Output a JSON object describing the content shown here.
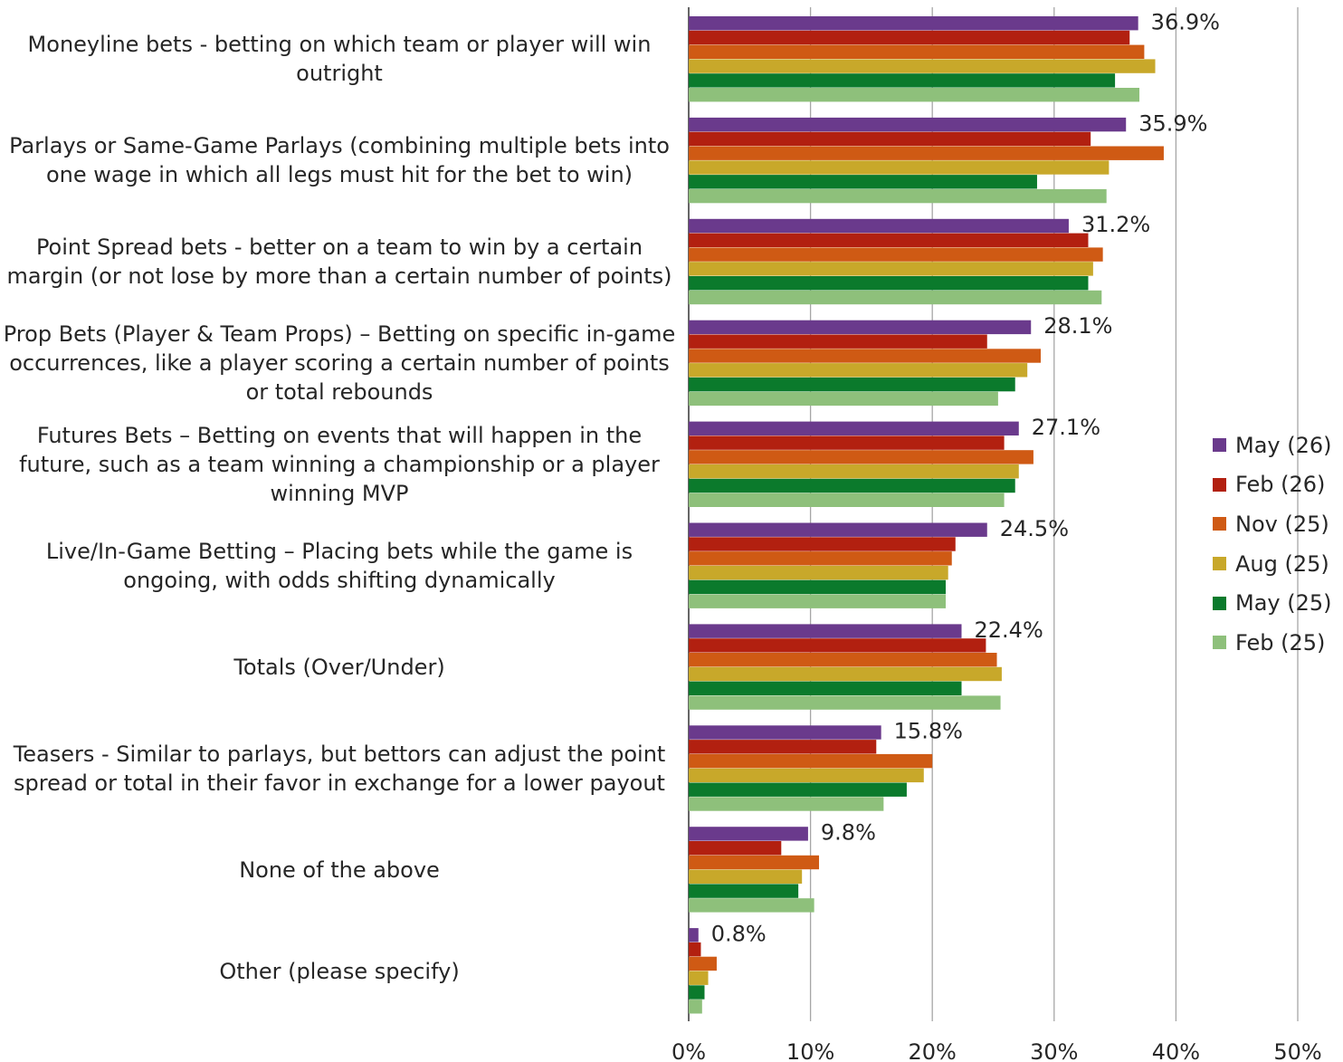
{
  "chart_data": {
    "type": "bar",
    "orientation": "horizontal",
    "categories": [
      "Moneyline bets - betting on which team or player will win outright",
      "Parlays or Same-Game Parlays (combining multiple bets into one wage in which all legs must hit for the bet to win)",
      "Point Spread bets - better on a team to win by a certain margin (or not lose by more than a certain number of points)",
      "Prop Bets (Player & Team Props) – Betting on specific in-game occurrences, like a player scoring a certain number of points or total rebounds",
      "Futures Bets – Betting on events that will happen in the future, such as a team winning a championship or a player winning MVP",
      "Live/In-Game Betting – Placing bets while the game is ongoing, with odds shifting dynamically",
      "Totals (Over/Under)",
      "Teasers - Similar to parlays, but bettors can adjust the point spread or total in their favor in exchange for a lower payout",
      "None of the above",
      "Other (please specify)"
    ],
    "series": [
      {
        "name": "May (26)",
        "color": "#6a3a8c",
        "values": [
          36.9,
          35.9,
          31.2,
          28.1,
          27.1,
          24.5,
          22.4,
          15.8,
          9.8,
          0.8
        ]
      },
      {
        "name": "Feb (26)",
        "color": "#b22010",
        "values": [
          36.2,
          33.0,
          32.8,
          24.5,
          25.9,
          21.9,
          24.4,
          15.4,
          7.6,
          1.0
        ]
      },
      {
        "name": "Nov (25)",
        "color": "#cf5a14",
        "values": [
          37.4,
          39.0,
          34.0,
          28.9,
          28.3,
          21.6,
          25.3,
          20.0,
          10.7,
          2.3
        ]
      },
      {
        "name": "Aug (25)",
        "color": "#c8a82a",
        "values": [
          38.3,
          34.5,
          33.2,
          27.8,
          27.1,
          21.3,
          25.7,
          19.3,
          9.3,
          1.6
        ]
      },
      {
        "name": "May (25)",
        "color": "#0b7a2c",
        "values": [
          35.0,
          28.6,
          32.8,
          26.8,
          26.8,
          21.1,
          22.4,
          17.9,
          9.0,
          1.3
        ]
      },
      {
        "name": "Feb (25)",
        "color": "#8ec07b",
        "values": [
          37.0,
          34.3,
          33.9,
          25.4,
          25.9,
          21.1,
          25.6,
          16.0,
          10.3,
          1.1
        ]
      }
    ],
    "data_labels": [
      "36.9%",
      "35.9%",
      "31.2%",
      "28.1%",
      "27.1%",
      "24.5%",
      "22.4%",
      "15.8%",
      "9.8%",
      "0.8%"
    ],
    "x_ticks": [
      "0%",
      "10%",
      "20%",
      "30%",
      "40%",
      "50%"
    ],
    "xlim": [
      0,
      50
    ],
    "grid": true,
    "legend_position": "right",
    "title": "",
    "xlabel": "",
    "ylabel": ""
  }
}
